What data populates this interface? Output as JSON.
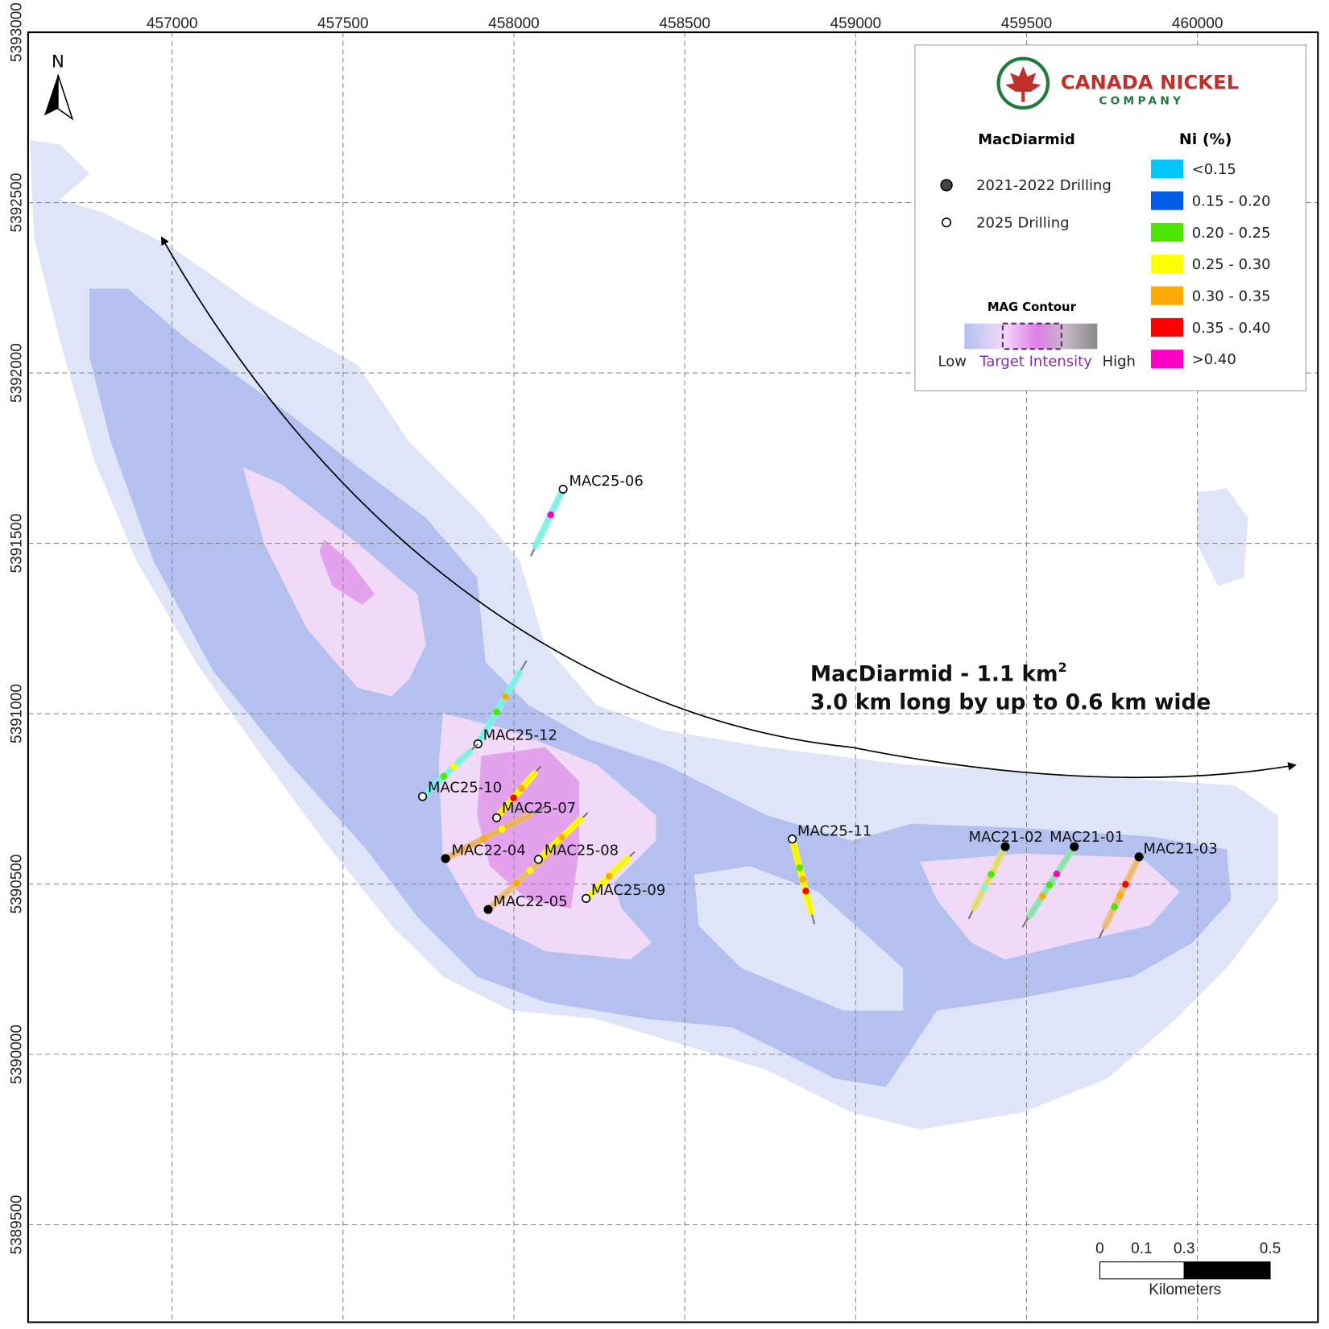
{
  "map": {
    "xticks": [
      457000,
      457500,
      458000,
      458500,
      459000,
      459500,
      460000
    ],
    "yticks": [
      5393000,
      5392500,
      5392000,
      5391500,
      5391000,
      5390500,
      5390000,
      5389500
    ],
    "north_label": "N",
    "annotation": {
      "line1": "MacDiarmid - 1.1 km",
      "superscript": "2",
      "line2": "3.0 km long by up to 0.6 km wide"
    }
  },
  "drilling": [
    {
      "label": "2021-2022 Drilling",
      "holes": [
        "MAC22-04",
        "MAC22-05",
        "MAC21-02",
        "MAC21-01",
        "MAC21-03"
      ]
    },
    {
      "label": "2025 Drilling",
      "holes": [
        "MAC25-06",
        "MAC25-12",
        "MAC25-10",
        "MAC25-07",
        "MAC25-08",
        "MAC25-09",
        "MAC25-11"
      ]
    }
  ],
  "legend": {
    "company_name": "CANADA NICKEL",
    "company_sub": "COMPANY",
    "section_title": "MacDiarmid",
    "ni_title": "Ni (%)",
    "ni_classes": [
      {
        "label": "<0.15",
        "color": "#00c5ff"
      },
      {
        "label": "0.15 - 0.20",
        "color": "#005ce6"
      },
      {
        "label": "0.20 - 0.25",
        "color": "#4ce600"
      },
      {
        "label": "0.25 - 0.30",
        "color": "#ffff00"
      },
      {
        "label": "0.30 - 0.35",
        "color": "#ffaa00"
      },
      {
        "label": "0.35 - 0.40",
        "color": "#ff0000"
      },
      {
        "label": ">0.40",
        "color": "#ff00c5"
      }
    ],
    "mag_title": "MAG Contour",
    "mag_low": "Low",
    "mag_target": "Target Intensity",
    "mag_high": "High"
  },
  "scalebar": {
    "ticks": [
      "0",
      "0.1",
      "0.3",
      "0.5"
    ],
    "unit": "Kilometers"
  }
}
